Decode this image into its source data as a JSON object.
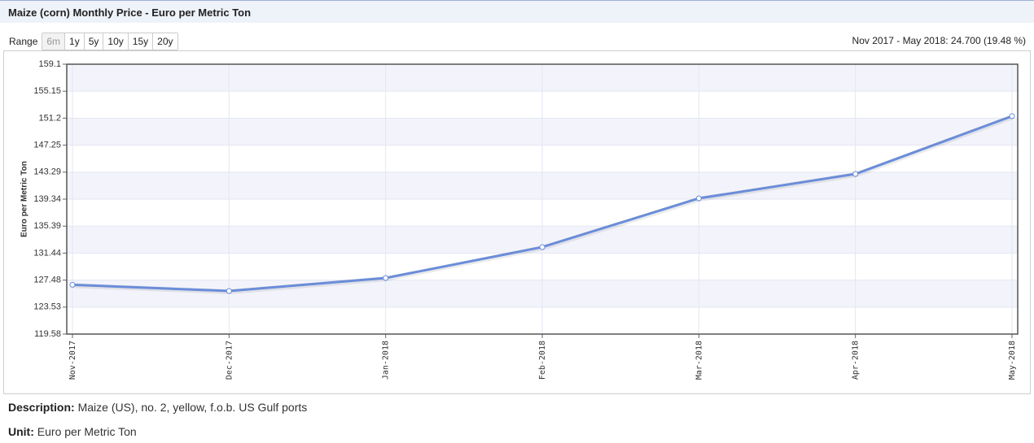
{
  "header": {
    "title": "Maize (corn) Monthly Price - Euro per Metric Ton"
  },
  "range": {
    "label": "Range",
    "buttons": [
      "6m",
      "1y",
      "5y",
      "10y",
      "15y",
      "20y"
    ]
  },
  "summary": "Nov 2017 - May 2018: 24.700 (19.48 %)",
  "chart_data": {
    "type": "line",
    "ylabel": "Euro per Metric Ton",
    "categories": [
      "Nov-2017",
      "Dec-2017",
      "Jan-2018",
      "Feb-2018",
      "Mar-2018",
      "Apr-2018",
      "May-2018"
    ],
    "series": [
      {
        "name": "Maize (corn)",
        "color": "#6a8dd9",
        "values": [
          126.8,
          125.89,
          127.79,
          132.32,
          139.46,
          143.03,
          151.5
        ]
      }
    ],
    "ylim": [
      119.58,
      159.1
    ],
    "yticks": [
      119.58,
      123.53,
      127.48,
      131.44,
      135.39,
      139.34,
      143.29,
      147.25,
      151.2,
      155.15,
      159.1
    ],
    "grid": true
  },
  "description": {
    "label": "Description:",
    "text": "Maize (US), no. 2, yellow, f.o.b. US Gulf ports"
  },
  "unit": {
    "label": "Unit:",
    "text": "Euro per Metric Ton"
  }
}
